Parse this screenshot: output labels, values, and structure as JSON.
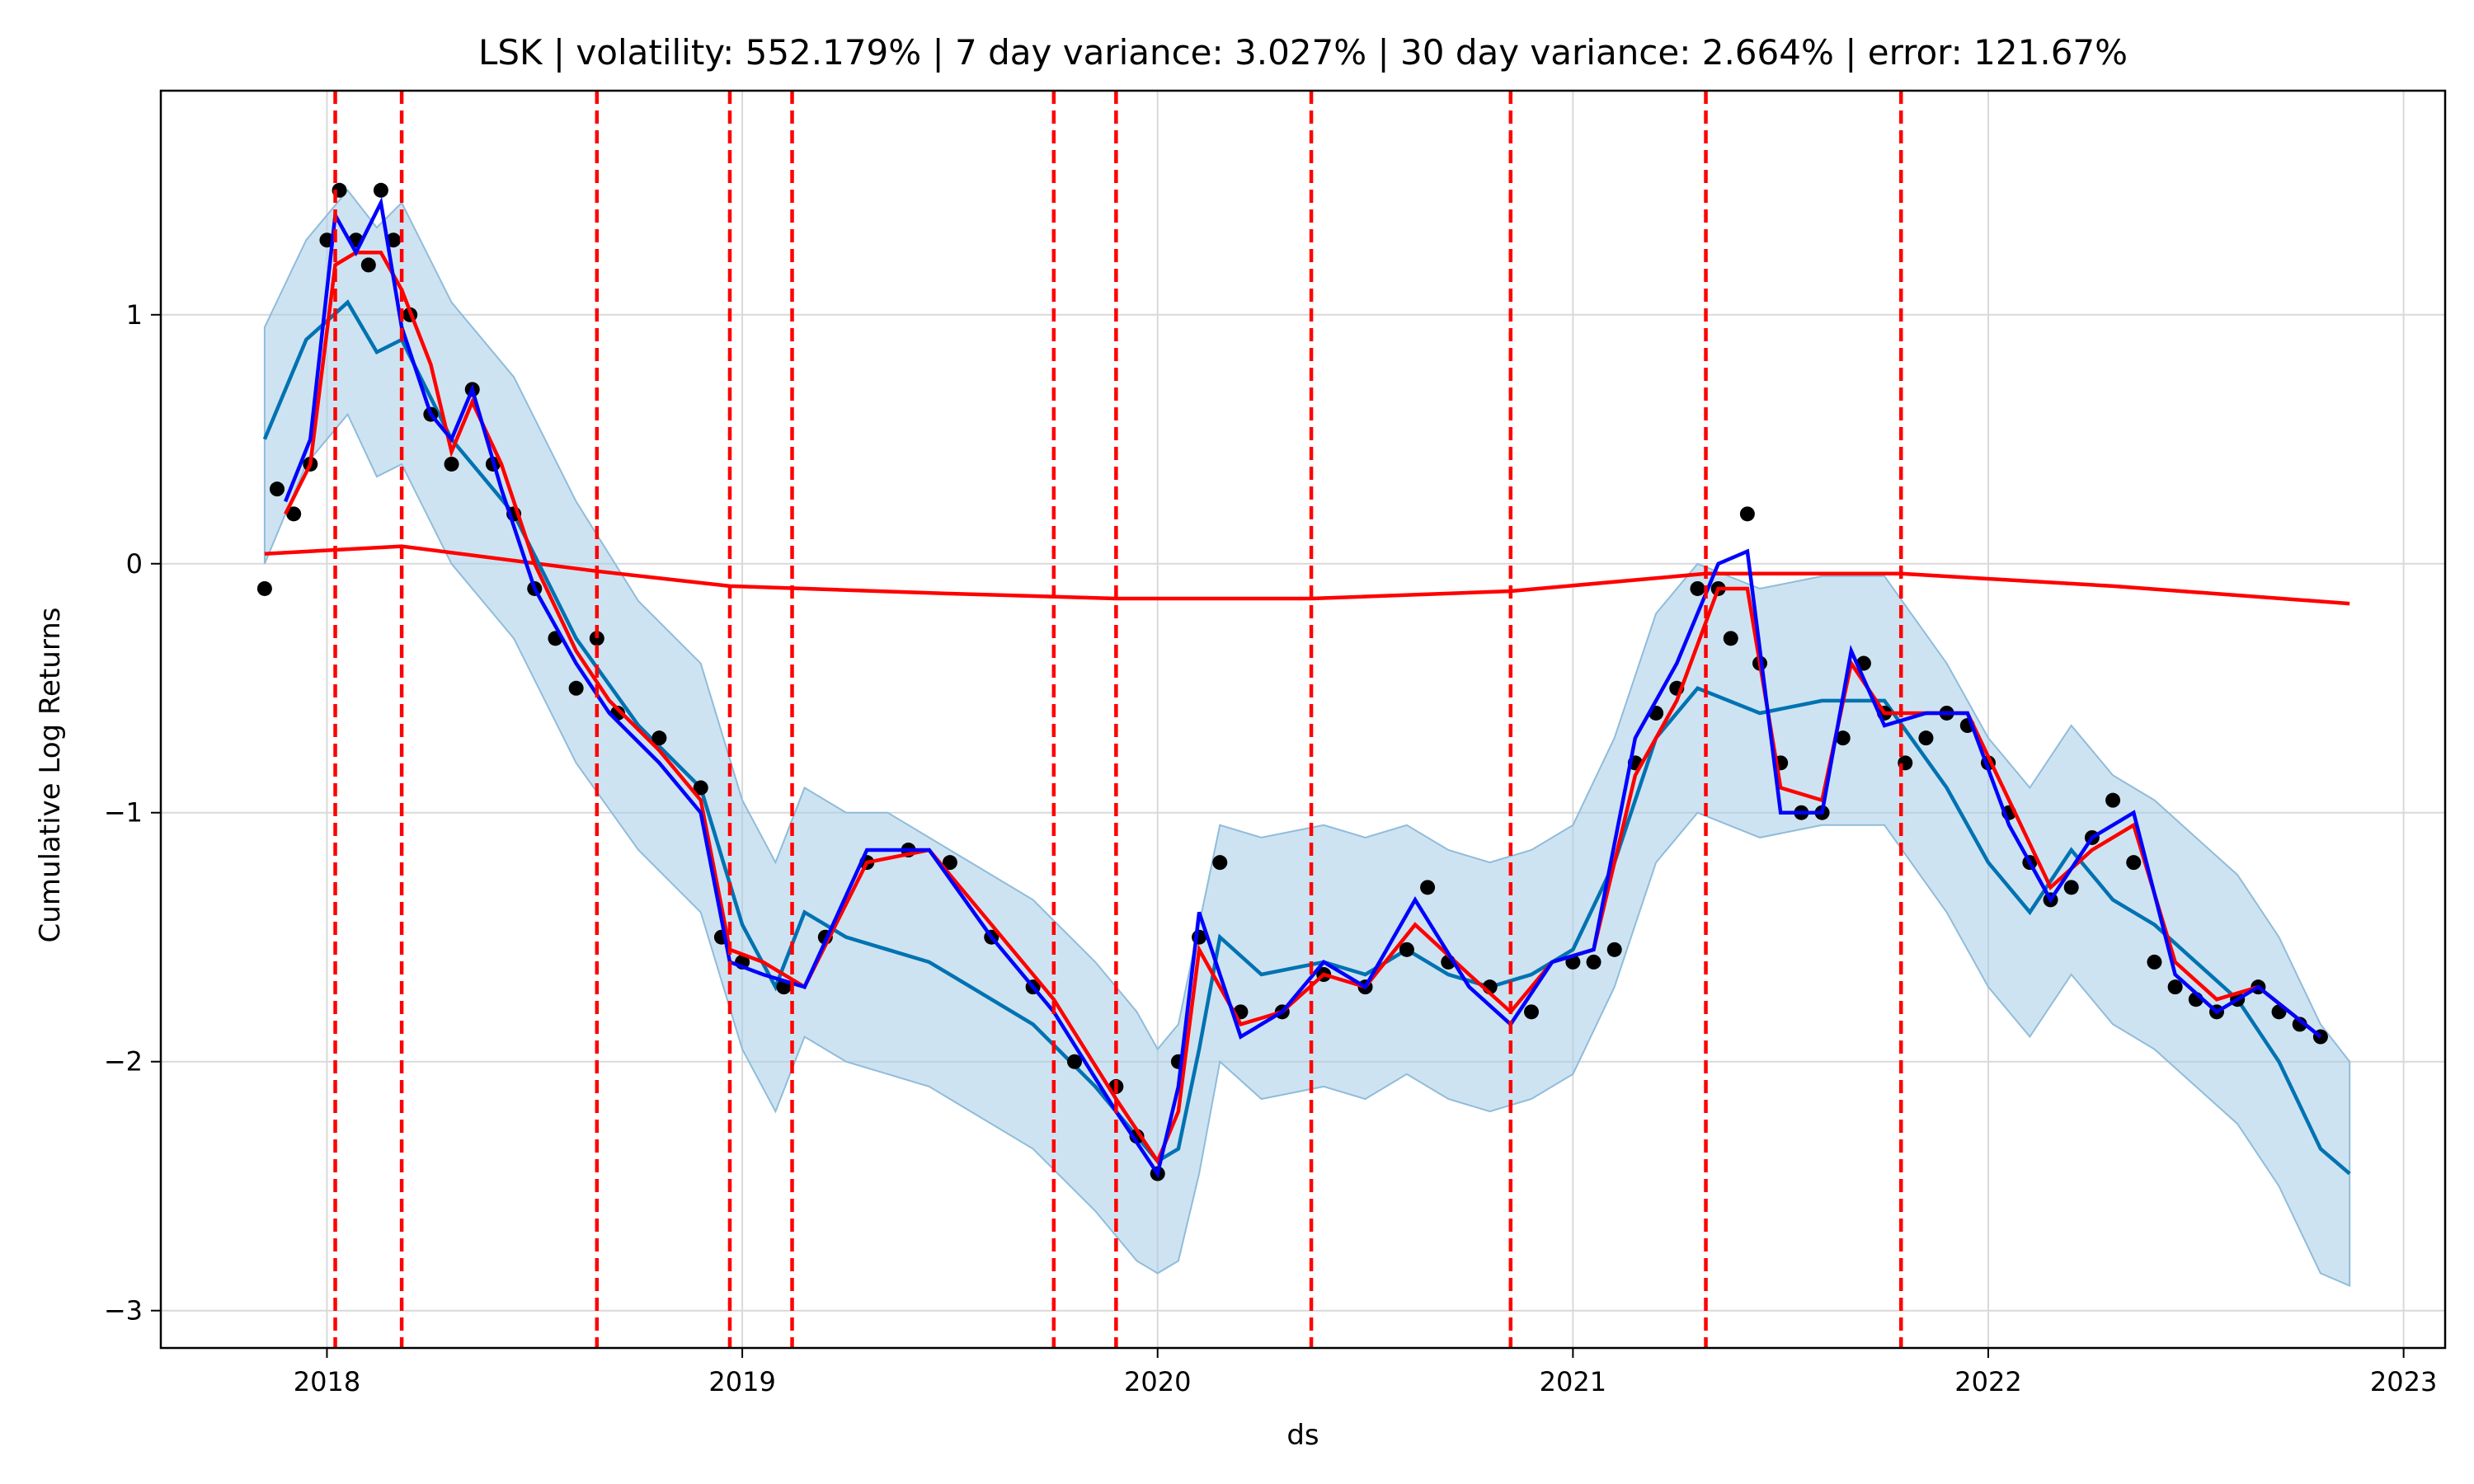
{
  "chart_data": {
    "type": "line",
    "title": "LSK | volatility: 552.179% | 7 day variance: 3.027% | 30 day variance: 2.664% | error: 121.67%",
    "xlabel": "ds",
    "ylabel": "Cumulative Log Returns",
    "x_ticks": [
      "2018",
      "2019",
      "2020",
      "2021",
      "2022",
      "2023"
    ],
    "y_ticks": [
      1,
      0,
      -1,
      -2,
      -3
    ],
    "xlim": [
      2017.6,
      2023.1
    ],
    "ylim": [
      -3.15,
      1.9
    ],
    "grid": true,
    "colors": {
      "actual": "#000000",
      "forecast": "#0072B2",
      "band": "#A6CCE5",
      "trend": "#FF0000",
      "smooth_red": "#FF0000",
      "smooth_blue": "#0000FF",
      "changepoints": "#FF0000"
    },
    "changepoints": [
      2018.02,
      2018.18,
      2018.65,
      2018.97,
      2019.12,
      2019.75,
      2019.9,
      2020.37,
      2020.85,
      2021.32,
      2021.79
    ],
    "trend": {
      "x": [
        2017.85,
        2018.18,
        2018.65,
        2018.97,
        2019.5,
        2019.9,
        2020.37,
        2020.85,
        2021.32,
        2021.79,
        2022.3,
        2022.87
      ],
      "y": [
        0.04,
        0.07,
        -0.03,
        -0.09,
        -0.12,
        -0.14,
        -0.14,
        -0.11,
        -0.04,
        -0.04,
        -0.09,
        -0.16
      ]
    },
    "series": [
      {
        "role": "actual",
        "x": [
          2017.85,
          2017.88,
          2017.92,
          2017.96,
          2018.0,
          2018.03,
          2018.07,
          2018.1,
          2018.13,
          2018.16,
          2018.2,
          2018.25,
          2018.3,
          2018.35,
          2018.4,
          2018.45,
          2018.5,
          2018.55,
          2018.6,
          2018.65,
          2018.7,
          2018.8,
          2018.9,
          2018.95,
          2019.0,
          2019.1,
          2019.2,
          2019.3,
          2019.4,
          2019.5,
          2019.6,
          2019.7,
          2019.8,
          2019.9,
          2019.95,
          2020.0,
          2020.05,
          2020.1,
          2020.15,
          2020.2,
          2020.3,
          2020.4,
          2020.5,
          2020.6,
          2020.65,
          2020.7,
          2020.8,
          2020.9,
          2021.0,
          2021.05,
          2021.1,
          2021.15,
          2021.2,
          2021.25,
          2021.3,
          2021.35,
          2021.38,
          2021.42,
          2021.45,
          2021.5,
          2021.55,
          2021.6,
          2021.65,
          2021.7,
          2021.75,
          2021.8,
          2021.85,
          2021.9,
          2021.95,
          2022.0,
          2022.05,
          2022.1,
          2022.15,
          2022.2,
          2022.25,
          2022.3,
          2022.35,
          2022.4,
          2022.45,
          2022.5,
          2022.55,
          2022.6,
          2022.65,
          2022.7,
          2022.75,
          2022.8
        ],
        "y": [
          -0.1,
          0.3,
          0.2,
          0.4,
          1.3,
          1.5,
          1.3,
          1.2,
          1.5,
          1.3,
          1.0,
          0.6,
          0.4,
          0.7,
          0.4,
          0.2,
          -0.1,
          -0.3,
          -0.5,
          -0.3,
          -0.6,
          -0.7,
          -0.9,
          -1.5,
          -1.6,
          -1.7,
          -1.5,
          -1.2,
          -1.15,
          -1.2,
          -1.5,
          -1.7,
          -2.0,
          -2.1,
          -2.3,
          -2.45,
          -2.0,
          -1.5,
          -1.2,
          -1.8,
          -1.8,
          -1.65,
          -1.7,
          -1.55,
          -1.3,
          -1.6,
          -1.7,
          -1.8,
          -1.6,
          -1.6,
          -1.55,
          -0.8,
          -0.6,
          -0.5,
          -0.1,
          -0.1,
          -0.3,
          0.2,
          -0.4,
          -0.8,
          -1.0,
          -1.0,
          -0.7,
          -0.4,
          -0.6,
          -0.8,
          -0.7,
          -0.6,
          -0.65,
          -0.8,
          -1.0,
          -1.2,
          -1.35,
          -1.3,
          -1.1,
          -0.95,
          -1.2,
          -1.6,
          -1.7,
          -1.75,
          -1.8,
          -1.75,
          -1.7,
          -1.8,
          -1.85,
          -1.9
        ]
      },
      {
        "role": "smooth_red",
        "x": [
          2017.9,
          2017.96,
          2018.02,
          2018.07,
          2018.13,
          2018.18,
          2018.25,
          2018.3,
          2018.35,
          2018.42,
          2018.5,
          2018.6,
          2018.68,
          2018.8,
          2018.9,
          2018.97,
          2019.05,
          2019.15,
          2019.3,
          2019.45,
          2019.6,
          2019.75,
          2019.9,
          2020.0,
          2020.05,
          2020.1,
          2020.2,
          2020.3,
          2020.4,
          2020.5,
          2020.62,
          2020.75,
          2020.85,
          2020.95,
          2021.05,
          2021.15,
          2021.25,
          2021.35,
          2021.42,
          2021.5,
          2021.6,
          2021.67,
          2021.75,
          2021.85,
          2021.95,
          2022.05,
          2022.15,
          2022.25,
          2022.35,
          2022.45,
          2022.55,
          2022.65,
          2022.8
        ],
        "y": [
          0.2,
          0.4,
          1.2,
          1.25,
          1.25,
          1.1,
          0.8,
          0.45,
          0.65,
          0.4,
          0.0,
          -0.35,
          -0.55,
          -0.75,
          -0.95,
          -1.55,
          -1.6,
          -1.7,
          -1.2,
          -1.15,
          -1.45,
          -1.75,
          -2.15,
          -2.4,
          -2.2,
          -1.55,
          -1.85,
          -1.8,
          -1.65,
          -1.7,
          -1.45,
          -1.65,
          -1.8,
          -1.6,
          -1.55,
          -0.85,
          -0.55,
          -0.1,
          -0.1,
          -0.9,
          -0.95,
          -0.4,
          -0.6,
          -0.6,
          -0.6,
          -0.95,
          -1.3,
          -1.15,
          -1.05,
          -1.6,
          -1.75,
          -1.7,
          -1.9
        ]
      },
      {
        "role": "smooth_blue",
        "x": [
          2017.9,
          2017.96,
          2018.02,
          2018.07,
          2018.13,
          2018.18,
          2018.25,
          2018.3,
          2018.35,
          2018.42,
          2018.5,
          2018.6,
          2018.68,
          2018.8,
          2018.9,
          2018.97,
          2019.05,
          2019.15,
          2019.3,
          2019.45,
          2019.6,
          2019.75,
          2019.9,
          2020.0,
          2020.05,
          2020.1,
          2020.2,
          2020.3,
          2020.4,
          2020.5,
          2020.62,
          2020.75,
          2020.85,
          2020.95,
          2021.05,
          2021.15,
          2021.25,
          2021.35,
          2021.42,
          2021.5,
          2021.6,
          2021.67,
          2021.75,
          2021.85,
          2021.95,
          2022.05,
          2022.15,
          2022.25,
          2022.35,
          2022.45,
          2022.55,
          2022.65,
          2022.8
        ],
        "y": [
          0.25,
          0.5,
          1.4,
          1.25,
          1.45,
          0.95,
          0.6,
          0.5,
          0.7,
          0.3,
          -0.1,
          -0.4,
          -0.6,
          -0.8,
          -1.0,
          -1.6,
          -1.65,
          -1.7,
          -1.15,
          -1.15,
          -1.5,
          -1.8,
          -2.2,
          -2.45,
          -2.1,
          -1.4,
          -1.9,
          -1.8,
          -1.6,
          -1.7,
          -1.35,
          -1.7,
          -1.85,
          -1.6,
          -1.55,
          -0.7,
          -0.4,
          0.0,
          0.05,
          -1.0,
          -1.0,
          -0.35,
          -0.65,
          -0.6,
          -0.6,
          -1.05,
          -1.35,
          -1.1,
          -1.0,
          -1.65,
          -1.8,
          -1.7,
          -1.9
        ]
      },
      {
        "role": "forecast",
        "x": [
          2017.85,
          2017.95,
          2018.05,
          2018.12,
          2018.18,
          2018.3,
          2018.45,
          2018.6,
          2018.75,
          2018.9,
          2019.0,
          2019.08,
          2019.15,
          2019.25,
          2019.35,
          2019.45,
          2019.55,
          2019.7,
          2019.85,
          2019.95,
          2020.0,
          2020.05,
          2020.1,
          2020.15,
          2020.25,
          2020.4,
          2020.5,
          2020.6,
          2020.7,
          2020.8,
          2020.9,
          2021.0,
          2021.1,
          2021.2,
          2021.3,
          2021.45,
          2021.6,
          2021.75,
          2021.9,
          2022.0,
          2022.1,
          2022.2,
          2022.3,
          2022.4,
          2022.5,
          2022.6,
          2022.7,
          2022.8,
          2022.87
        ],
        "y": [
          0.5,
          0.9,
          1.05,
          0.85,
          0.9,
          0.5,
          0.2,
          -0.3,
          -0.65,
          -0.9,
          -1.45,
          -1.7,
          -1.4,
          -1.5,
          -1.55,
          -1.6,
          -1.7,
          -1.85,
          -2.1,
          -2.3,
          -2.4,
          -2.35,
          -1.95,
          -1.5,
          -1.65,
          -1.6,
          -1.65,
          -1.55,
          -1.65,
          -1.7,
          -1.65,
          -1.55,
          -1.2,
          -0.7,
          -0.5,
          -0.6,
          -0.55,
          -0.55,
          -0.9,
          -1.2,
          -1.4,
          -1.15,
          -1.35,
          -1.45,
          -1.6,
          -1.75,
          -2.0,
          -2.35,
          -2.45
        ]
      }
    ],
    "band": {
      "x": [
        2017.85,
        2017.95,
        2018.05,
        2018.12,
        2018.18,
        2018.3,
        2018.45,
        2018.6,
        2018.75,
        2018.9,
        2019.0,
        2019.08,
        2019.15,
        2019.25,
        2019.35,
        2019.45,
        2019.55,
        2019.7,
        2019.85,
        2019.95,
        2020.0,
        2020.05,
        2020.1,
        2020.15,
        2020.25,
        2020.4,
        2020.5,
        2020.6,
        2020.7,
        2020.8,
        2020.9,
        2021.0,
        2021.1,
        2021.2,
        2021.3,
        2021.45,
        2021.6,
        2021.75,
        2021.9,
        2022.0,
        2022.1,
        2022.2,
        2022.3,
        2022.4,
        2022.5,
        2022.6,
        2022.7,
        2022.8,
        2022.87
      ],
      "upper": [
        0.95,
        1.3,
        1.5,
        1.35,
        1.45,
        1.05,
        0.75,
        0.25,
        -0.15,
        -0.4,
        -0.95,
        -1.2,
        -0.9,
        -1.0,
        -1.0,
        -1.1,
        -1.2,
        -1.35,
        -1.6,
        -1.8,
        -1.95,
        -1.85,
        -1.45,
        -1.05,
        -1.1,
        -1.05,
        -1.1,
        -1.05,
        -1.15,
        -1.2,
        -1.15,
        -1.05,
        -0.7,
        -0.2,
        0.0,
        -0.1,
        -0.05,
        -0.05,
        -0.4,
        -0.7,
        -0.9,
        -0.65,
        -0.85,
        -0.95,
        -1.1,
        -1.25,
        -1.5,
        -1.85,
        -2.0
      ],
      "lower": [
        0.0,
        0.4,
        0.6,
        0.35,
        0.4,
        0.0,
        -0.3,
        -0.8,
        -1.15,
        -1.4,
        -1.95,
        -2.2,
        -1.9,
        -2.0,
        -2.05,
        -2.1,
        -2.2,
        -2.35,
        -2.6,
        -2.8,
        -2.85,
        -2.8,
        -2.45,
        -2.0,
        -2.15,
        -2.1,
        -2.15,
        -2.05,
        -2.15,
        -2.2,
        -2.15,
        -2.05,
        -1.7,
        -1.2,
        -1.0,
        -1.1,
        -1.05,
        -1.05,
        -1.4,
        -1.7,
        -1.9,
        -1.65,
        -1.85,
        -1.95,
        -2.1,
        -2.25,
        -2.5,
        -2.85,
        -2.9
      ]
    }
  }
}
